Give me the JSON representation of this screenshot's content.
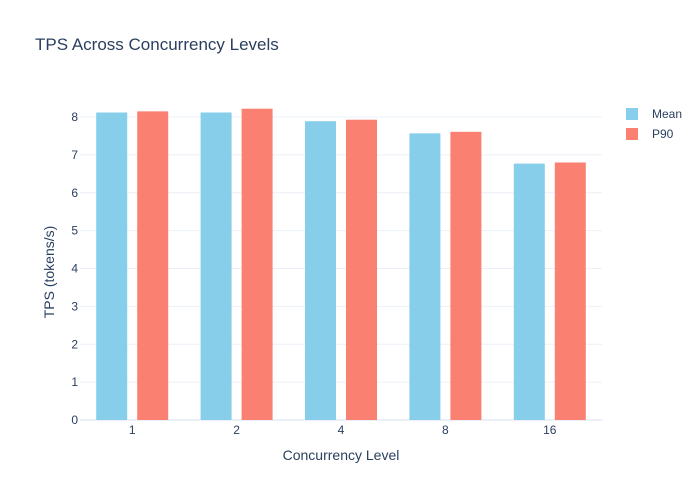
{
  "chart_data": {
    "type": "bar",
    "title": "TPS Across Concurrency Levels",
    "xlabel": "Concurrency Level",
    "ylabel": "TPS (tokens/s)",
    "categories": [
      "1",
      "2",
      "4",
      "8",
      "16"
    ],
    "series": [
      {
        "name": "Mean",
        "color": "#87ceeb",
        "values": [
          8.12,
          8.12,
          7.89,
          7.57,
          6.77
        ]
      },
      {
        "name": "P90",
        "color": "#fa8072",
        "values": [
          8.15,
          8.22,
          7.93,
          7.61,
          6.8
        ]
      }
    ],
    "ylim": [
      0,
      8.45
    ],
    "yticks": [
      0,
      1,
      2,
      3,
      4,
      5,
      6,
      7,
      8
    ],
    "grid": true,
    "legend_position": "top-right"
  }
}
